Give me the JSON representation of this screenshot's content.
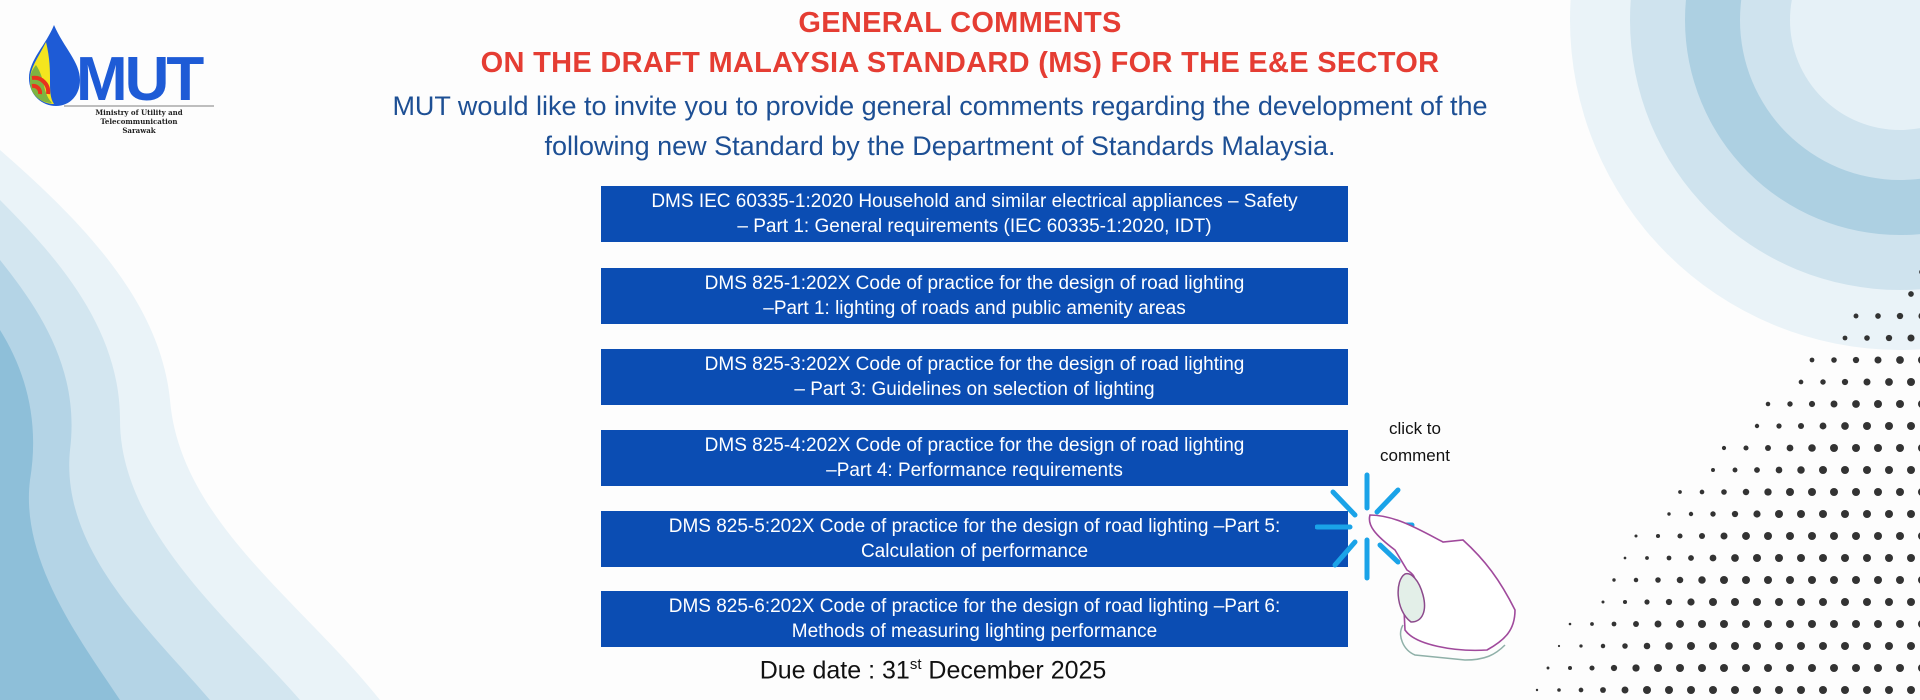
{
  "logo": {
    "wordmark": "MUT",
    "caption_lines": [
      "Ministry of Utility and",
      "Telecommunication",
      "Sarawak"
    ]
  },
  "header": {
    "title_line1": "GENERAL COMMENTS",
    "title_line2": "ON THE DRAFT MALAYSIA  STANDARD (MS) FOR THE E&E SECTOR",
    "intro_line1": "MUT would like to invite you to provide general comments regarding the development of the",
    "intro_line2": "following new Standard by the Department of Standards Malaysia."
  },
  "standards": [
    {
      "line1": "DMS IEC 60335-1:2020 Household and similar electrical appliances – Safety",
      "line2": "– Part 1: General requirements (IEC 60335-1:2020, IDT)"
    },
    {
      "line1": "DMS 825-1:202X Code of practice for the design of road lighting",
      "line2": "–Part 1: lighting of roads and public amenity areas"
    },
    {
      "line1": "DMS 825-3:202X Code of practice for the design of road lighting",
      "line2": "– Part 3: Guidelines on selection of lighting"
    },
    {
      "line1": "DMS 825-4:202X Code of practice for the design of road lighting",
      "line2": "–Part 4: Performance requirements"
    },
    {
      "line1": "DMS 825-5:202X Code of practice for the design of road lighting –Part 5:",
      "line2": "Calculation of performance"
    },
    {
      "line1": "DMS 825-6:202X Code of practice for the design of road lighting –Part 6:",
      "line2": "Methods of measuring lighting performance"
    }
  ],
  "due": {
    "prefix": "Due date : 31",
    "suffix": "st",
    "rest": " December 2025"
  },
  "cta": {
    "line1": "click to",
    "line2": "comment",
    "icon": "pointing-hand-click-icon"
  },
  "colors": {
    "title": "#e53d33",
    "intro": "#1d4f94",
    "button": "#0b4db3",
    "sparkle": "#1aa3e8"
  }
}
